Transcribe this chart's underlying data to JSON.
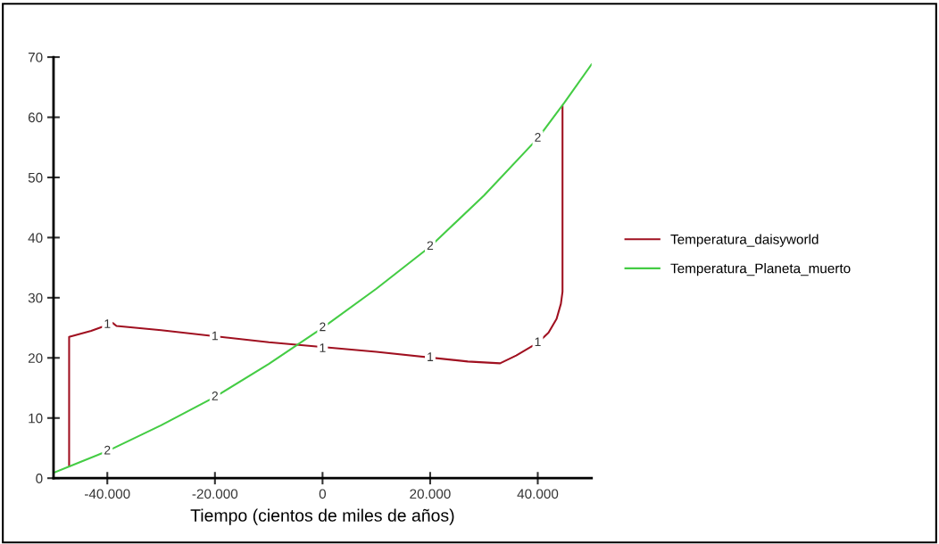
{
  "chart_data": {
    "type": "line",
    "xlabel": "Tiempo (cientos de miles de años)",
    "xlim": [
      -50000,
      50000
    ],
    "xticks": [
      {
        "value": -40000,
        "label": "-40.000"
      },
      {
        "value": -20000,
        "label": "-20.000"
      },
      0,
      {
        "value": 20000,
        "label": "20.000"
      },
      {
        "value": 40000,
        "label": "40.000"
      }
    ],
    "ylim": [
      0,
      70
    ],
    "yticks": [
      0,
      10,
      20,
      30,
      40,
      50,
      60,
      70
    ],
    "grid": false,
    "legend": "right",
    "marker": "none",
    "line_style": "solid",
    "series": [
      {
        "name": "Temperatura_daisyworld",
        "color": "#a01020",
        "x": [
          -47100,
          -47100,
          -43000,
          -39000,
          -38300,
          -30000,
          -10000,
          10000,
          27000,
          33000,
          36000,
          40000,
          42000,
          43500,
          44300,
          44600,
          44600
        ],
        "values": [
          2,
          23.5,
          24.5,
          25.8,
          25.3,
          24.6,
          22.6,
          21,
          19.4,
          19.1,
          20.4,
          22.5,
          24.2,
          26.5,
          29,
          31,
          61.8
        ]
      },
      {
        "name": "Temperatura_Planeta_muerto",
        "color": "#44cc44",
        "x": [
          -50000,
          -45000,
          -40000,
          -30000,
          -20000,
          -10000,
          0,
          10000,
          20000,
          30000,
          40000,
          45000,
          50000
        ],
        "values": [
          0.9,
          2.7,
          4.5,
          8.8,
          13.5,
          19,
          25,
          31.5,
          38.5,
          47,
          56.5,
          62.5,
          68.8
        ]
      }
    ],
    "annotations": [
      {
        "text": "1",
        "x": -40000,
        "y": 25.5
      },
      {
        "text": "1",
        "x": -20000,
        "y": 23.5
      },
      {
        "text": "1",
        "x": 0,
        "y": 21.5
      },
      {
        "text": "1",
        "x": 20000,
        "y": 20
      },
      {
        "text": "1",
        "x": 40000,
        "y": 22.5
      },
      {
        "text": "2",
        "x": -40000,
        "y": 4.5
      },
      {
        "text": "2",
        "x": -20000,
        "y": 13.5
      },
      {
        "text": "2",
        "x": 0,
        "y": 25
      },
      {
        "text": "2",
        "x": 20000,
        "y": 38.5
      },
      {
        "text": "2",
        "x": 40000,
        "y": 56.5
      }
    ]
  }
}
